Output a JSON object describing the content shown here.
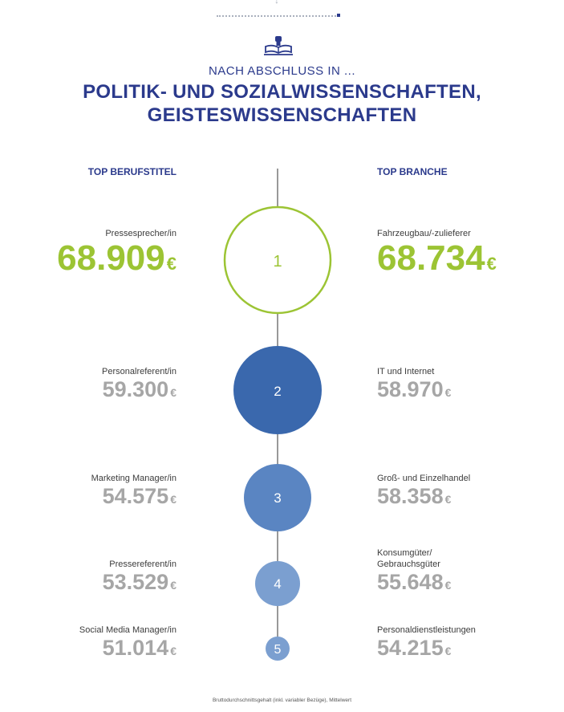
{
  "header": {
    "subtitle": "NACH ABSCHLUSS IN ...",
    "title_line1": "POLITIK- UND SOZIALWISSENSCHAFTEN,",
    "title_line2": "GEISTESWISSENSCHAFTEN"
  },
  "columns": {
    "left_heading": "TOP BERUFSTITEL",
    "right_heading": "TOP BRANCHE"
  },
  "currency": "€",
  "ranks": [
    {
      "rank": "1",
      "left_label": "Pressesprecher/in",
      "left_value": "68.909",
      "right_label": "Fahrzeugbau/-zulieferer",
      "right_value": "68.734"
    },
    {
      "rank": "2",
      "left_label": "Personalreferent/in",
      "left_value": "59.300",
      "right_label": "IT und Internet",
      "right_value": "58.970"
    },
    {
      "rank": "3",
      "left_label": "Marketing Manager/in",
      "left_value": "54.575",
      "right_label": "Groß- und Einzelhandel",
      "right_value": "58.358"
    },
    {
      "rank": "4",
      "left_label": "Pressereferent/in",
      "left_value": "53.529",
      "right_label_line1": "Konsumgüter/",
      "right_label_line2": "Gebrauchsgüter",
      "right_value": "55.648"
    },
    {
      "rank": "5",
      "left_label": "Social Media Manager/in",
      "left_value": "51.014",
      "right_label": "Personaldienstleistungen",
      "right_value": "54.215"
    }
  ],
  "footnote": "Bruttodurchschnittsgehalt (inkl. variabler Bezüge), Mittelwert",
  "colors": {
    "navy": "#2b3a8c",
    "accent_green": "#9cc434",
    "value_grey": "#a6a6a6",
    "circle2": "#3a68ad",
    "circle3": "#5a85c2",
    "circle4": "#7b9fd0",
    "circle5": "#7b9fd0"
  },
  "icons": {
    "top": "down-arrow-icon",
    "emblem": "book-fist-icon"
  }
}
